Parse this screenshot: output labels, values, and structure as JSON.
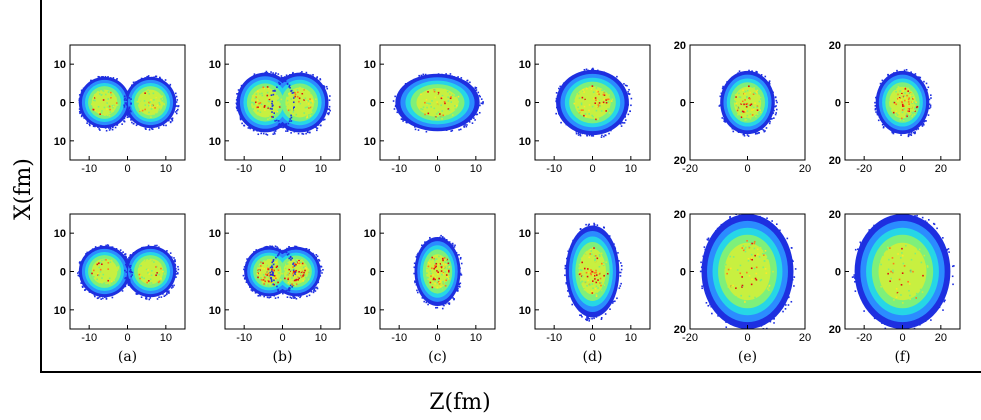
{
  "chart_data": {
    "type": "heatmap",
    "xlabel": "Z(fm)",
    "ylabel": "X(fm)",
    "colormap": [
      "#1e2fe0",
      "#2b8cff",
      "#26d6e6",
      "#7ef07a",
      "#c8f040",
      "#ffe62a",
      "#ff7a1a",
      "#e01010"
    ],
    "panels": [
      {
        "label": "",
        "xlim": [
          -15,
          15
        ],
        "ylim": [
          -15,
          15
        ],
        "xticks": [
          "-10",
          "0",
          "10"
        ],
        "yticks": [
          "10",
          "0",
          "10"
        ],
        "blobs": [
          {
            "cx": -6,
            "cy": 0,
            "rx": 6.7,
            "ry": 6.7
          },
          {
            "cx": 6,
            "cy": 0,
            "rx": 6.7,
            "ry": 6.7
          }
        ],
        "peak": 0.45
      },
      {
        "label": "",
        "xlim": [
          -15,
          15
        ],
        "ylim": [
          -15,
          15
        ],
        "xticks": [
          "-10",
          "0",
          "10"
        ],
        "yticks": [
          "10",
          "0",
          "10"
        ],
        "blobs": [
          {
            "cx": -4.5,
            "cy": 0,
            "rx": 7.5,
            "ry": 7.8
          },
          {
            "cx": 4.5,
            "cy": 0,
            "rx": 7.5,
            "ry": 7.8
          }
        ],
        "peak": 0.55
      },
      {
        "label": "",
        "xlim": [
          -15,
          15
        ],
        "ylim": [
          -15,
          15
        ],
        "xticks": [
          "-10",
          "0",
          "10"
        ],
        "yticks": [
          "10",
          "0",
          "10"
        ],
        "blobs": [
          {
            "cx": 0,
            "cy": 0,
            "rx": 11,
            "ry": 7.5
          }
        ],
        "peak": 0.65
      },
      {
        "label": "",
        "xlim": [
          -15,
          15
        ],
        "ylim": [
          -15,
          15
        ],
        "xticks": [
          "-10",
          "0",
          "10"
        ],
        "yticks": [
          "10",
          "0",
          "10"
        ],
        "blobs": [
          {
            "cx": 0,
            "cy": 0,
            "rx": 9.5,
            "ry": 8.5
          }
        ],
        "peak": 0.75
      },
      {
        "label": "",
        "xlim": [
          -20,
          20
        ],
        "ylim": [
          -20,
          20
        ],
        "xticks": [
          "-20",
          "0",
          "20"
        ],
        "yticks": [
          "20",
          "0",
          "20"
        ],
        "blobs": [
          {
            "cx": 0,
            "cy": 0,
            "rx": 9.5,
            "ry": 11
          }
        ],
        "peak": 0.72
      },
      {
        "label": "",
        "xlim": [
          -30,
          30
        ],
        "ylim": [
          -20,
          20
        ],
        "xticks": [
          "-20",
          "0",
          "20"
        ],
        "yticks": [
          "20",
          "0",
          "20"
        ],
        "blobs": [
          {
            "cx": 0,
            "cy": 0,
            "rx": 14,
            "ry": 11
          }
        ],
        "peak": 0.9
      },
      {
        "label": "(a)",
        "xlim": [
          -15,
          15
        ],
        "ylim": [
          -15,
          15
        ],
        "xticks": [
          "-10",
          "0",
          "10"
        ],
        "yticks": [
          "10",
          "0",
          "10"
        ],
        "blobs": [
          {
            "cx": -6,
            "cy": 0,
            "rx": 6.7,
            "ry": 6.7
          },
          {
            "cx": 6,
            "cy": 0,
            "rx": 6.7,
            "ry": 6.7
          }
        ],
        "peak": 0.45
      },
      {
        "label": "(b)",
        "xlim": [
          -15,
          15
        ],
        "ylim": [
          -15,
          15
        ],
        "xticks": [
          "-10",
          "0",
          "10"
        ],
        "yticks": [
          "10",
          "0",
          "10"
        ],
        "blobs": [
          {
            "cx": -3.5,
            "cy": 0,
            "rx": 6.5,
            "ry": 6.5
          },
          {
            "cx": 3.5,
            "cy": 0,
            "rx": 6.5,
            "ry": 6.5
          }
        ],
        "peak": 0.85
      },
      {
        "label": "(c)",
        "xlim": [
          -15,
          15
        ],
        "ylim": [
          -15,
          15
        ],
        "xticks": [
          "-10",
          "0",
          "10"
        ],
        "yticks": [
          "10",
          "0",
          "10"
        ],
        "blobs": [
          {
            "cx": 0,
            "cy": 0,
            "rx": 6,
            "ry": 9
          }
        ],
        "peak": 0.9
      },
      {
        "label": "(d)",
        "xlim": [
          -15,
          15
        ],
        "ylim": [
          -15,
          15
        ],
        "xticks": [
          "-10",
          "0",
          "10"
        ],
        "yticks": [
          "10",
          "0",
          "10"
        ],
        "blobs": [
          {
            "cx": 0,
            "cy": 0,
            "rx": 7,
            "ry": 12
          }
        ],
        "peak": 0.9
      },
      {
        "label": "(e)",
        "xlim": [
          -20,
          20
        ],
        "ylim": [
          -20,
          20
        ],
        "xticks": [
          "-20",
          "0",
          "20"
        ],
        "yticks": [
          "20",
          "0",
          "20"
        ],
        "blobs": [
          {
            "cx": 0,
            "cy": 0,
            "rx": 16,
            "ry": 20
          }
        ],
        "peak": 0.8
      },
      {
        "label": "(f)",
        "xlim": [
          -30,
          30
        ],
        "ylim": [
          -20,
          20
        ],
        "xticks": [
          "-20",
          "0",
          "20"
        ],
        "yticks": [
          "20",
          "0",
          "20"
        ],
        "blobs": [
          {
            "cx": 0,
            "cy": 0,
            "rx": 25,
            "ry": 20
          }
        ],
        "peak": 0.6
      }
    ]
  }
}
